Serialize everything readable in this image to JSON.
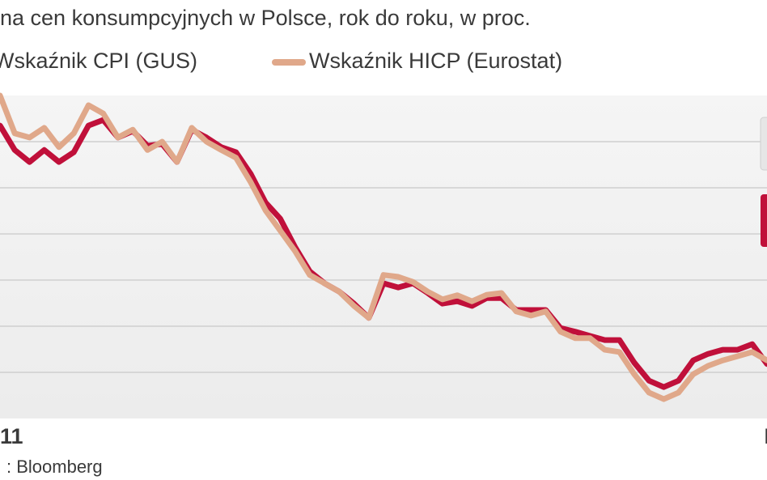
{
  "chart_data": {
    "type": "line",
    "title": "na cen konsumpcyjnych w Polsce, rok do roku, w proc.",
    "source": ": Bloomberg",
    "x": [
      0,
      1,
      2,
      3,
      4,
      5,
      6,
      7,
      8,
      9,
      10,
      11,
      12,
      13,
      14,
      15,
      16,
      17,
      18,
      19,
      20,
      21,
      22,
      23,
      24,
      25,
      26,
      27,
      28,
      29,
      30,
      31,
      32,
      33,
      34,
      35,
      36,
      37,
      38,
      39,
      40,
      41,
      42,
      43,
      44,
      45,
      46,
      47,
      48,
      49,
      50,
      51,
      52
    ],
    "series": [
      {
        "name": "Wskaźnik CPI (GUS)",
        "color": "#c0103a",
        "values": [
          6.35,
          5.82,
          5.56,
          5.82,
          5.56,
          5.77,
          6.35,
          6.47,
          6.09,
          6.23,
          5.91,
          5.95,
          5.56,
          6.26,
          6.09,
          5.88,
          5.77,
          5.3,
          4.68,
          4.33,
          3.72,
          3.19,
          2.93,
          2.75,
          2.49,
          2.18,
          2.93,
          2.84,
          2.93,
          2.72,
          2.49,
          2.54,
          2.44,
          2.61,
          2.61,
          2.35,
          2.35,
          2.35,
          1.96,
          1.88,
          1.79,
          1.7,
          1.7,
          1.21,
          0.82,
          0.68,
          0.82,
          1.26,
          1.4,
          1.49,
          1.49,
          1.61,
          1.18
        ]
      },
      {
        "name": "Wskaźnik HICP (Eurostat)",
        "color": "#e0a88a",
        "values": [
          7.0,
          6.18,
          6.09,
          6.3,
          5.88,
          6.18,
          6.79,
          6.61,
          6.09,
          6.26,
          5.82,
          6.0,
          5.56,
          6.3,
          6.0,
          5.82,
          5.65,
          5.12,
          4.51,
          4.07,
          3.63,
          3.11,
          2.93,
          2.75,
          2.44,
          2.18,
          3.11,
          3.07,
          2.96,
          2.75,
          2.58,
          2.67,
          2.54,
          2.68,
          2.72,
          2.32,
          2.23,
          2.32,
          1.88,
          1.74,
          1.74,
          1.49,
          1.44,
          0.96,
          0.56,
          0.42,
          0.56,
          0.96,
          1.14,
          1.26,
          1.35,
          1.44,
          1.26
        ]
      }
    ],
    "xlim": [
      0,
      52
    ],
    "xticks": [
      {
        "value": 0,
        "label": "11"
      },
      {
        "value": 52,
        "label": "I"
      }
    ],
    "ylim": [
      0,
      7
    ],
    "yticks": [
      1,
      2,
      3,
      4,
      5,
      6
    ],
    "grid": true
  }
}
